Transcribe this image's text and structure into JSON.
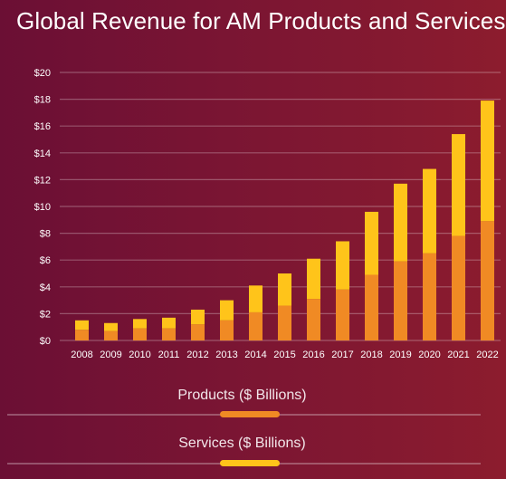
{
  "title": "Global Revenue for AM Products and Services",
  "colors": {
    "products": "#f08a24",
    "services": "#ffc41a"
  },
  "legend": {
    "products_label": "Products ($ Billions)",
    "services_label": "Services ($ Billions)"
  },
  "chart_data": {
    "type": "bar",
    "stacked": true,
    "title": "Global Revenue for AM Products and Services",
    "categories": [
      "2008",
      "2009",
      "2010",
      "2011",
      "2012",
      "2013",
      "2014",
      "2015",
      "2016",
      "2017",
      "2018",
      "2019",
      "2020",
      "2021",
      "2022"
    ],
    "series": [
      {
        "name": "Products ($ Billions)",
        "values": [
          0.8,
          0.7,
          0.9,
          0.9,
          1.2,
          1.5,
          2.1,
          2.6,
          3.1,
          3.8,
          4.9,
          5.9,
          6.5,
          7.8,
          8.9
        ]
      },
      {
        "name": "Services ($ Billions)",
        "values": [
          0.7,
          0.6,
          0.7,
          0.8,
          1.1,
          1.5,
          2.0,
          2.4,
          3.0,
          3.6,
          4.7,
          5.8,
          6.3,
          7.6,
          9.0
        ]
      }
    ],
    "y_ticks": [
      "$0",
      "$2",
      "$4",
      "$6",
      "$8",
      "$10",
      "$12",
      "$14",
      "$16",
      "$18",
      "$20"
    ],
    "ylim": [
      0,
      20
    ],
    "grid": true,
    "legend_position": "bottom"
  }
}
